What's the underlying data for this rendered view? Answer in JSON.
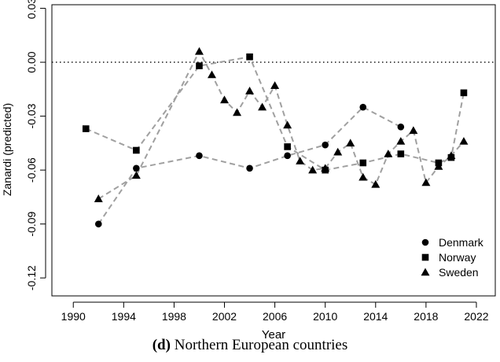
{
  "caption": {
    "tag": "(d)",
    "text": " Northern European countries"
  },
  "chart_data": {
    "type": "scatter",
    "title": "",
    "xlabel": "Year",
    "ylabel": "Zanardi (predicted)",
    "xlim": [
      1988.3,
      2023.5
    ],
    "ylim": [
      -0.13,
      0.032
    ],
    "xticks": [
      1990,
      1994,
      1998,
      2002,
      2006,
      2010,
      2014,
      2018,
      2022
    ],
    "xtick_labels": [
      "1990",
      "1994",
      "1998",
      "2002",
      "2006",
      "2010",
      "2014",
      "2018",
      "2022"
    ],
    "yticks": [
      0.03,
      0.0,
      -0.03,
      -0.06,
      -0.09,
      -0.12
    ],
    "ytick_labels": [
      "0.03",
      "0.00",
      "-0.03",
      "-0.06",
      "-0.09",
      "-0.12"
    ],
    "reference_line": {
      "y": 0.0,
      "style": "dotted"
    },
    "grid": false,
    "legend_position": "bottom-right",
    "line_style": "dashed",
    "line_color": "#a0a0a0",
    "marker_color": "#000000",
    "series": [
      {
        "name": "Denmark",
        "marker": "circle",
        "x": [
          1992,
          1995,
          2000,
          2004,
          2007,
          2010,
          2013,
          2016
        ],
        "y": [
          -0.09,
          -0.059,
          -0.052,
          -0.059,
          -0.052,
          -0.046,
          -0.025,
          -0.036
        ]
      },
      {
        "name": "Norway",
        "marker": "square",
        "x": [
          1991,
          1995,
          2000,
          2004,
          2007,
          2010,
          2013,
          2016,
          2019,
          2020,
          2021
        ],
        "y": [
          -0.037,
          -0.049,
          -0.002,
          0.003,
          -0.047,
          -0.06,
          -0.056,
          -0.051,
          -0.056,
          -0.053,
          -0.017
        ]
      },
      {
        "name": "Sweden",
        "marker": "triangle",
        "x": [
          1992,
          1995,
          2000,
          2001,
          2002,
          2003,
          2004,
          2005,
          2006,
          2007,
          2008,
          2009,
          2010,
          2011,
          2012,
          2013,
          2014,
          2015,
          2016,
          2017,
          2018,
          2019,
          2020,
          2021
        ],
        "y": [
          -0.076,
          -0.063,
          0.006,
          -0.007,
          -0.021,
          -0.028,
          -0.016,
          -0.025,
          -0.013,
          -0.035,
          -0.055,
          -0.06,
          -0.059,
          -0.05,
          -0.045,
          -0.064,
          -0.068,
          -0.051,
          -0.044,
          -0.038,
          -0.067,
          -0.058,
          -0.052,
          -0.044
        ]
      }
    ]
  }
}
